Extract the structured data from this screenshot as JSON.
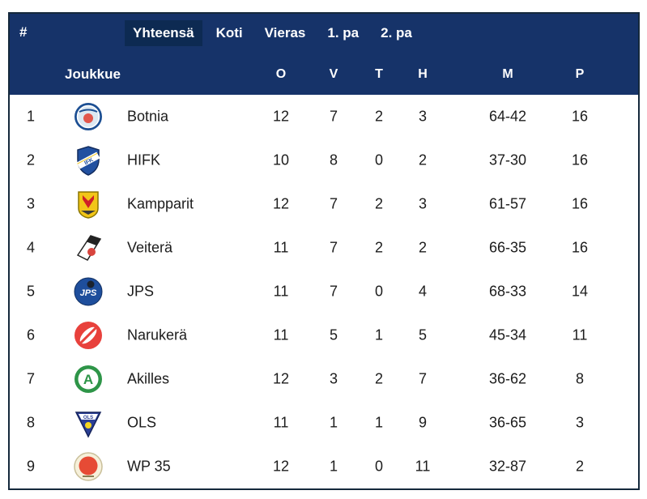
{
  "table": {
    "rank_header": "#",
    "tabs": [
      {
        "label": "Yhteensä",
        "active": true
      },
      {
        "label": "Koti",
        "active": false
      },
      {
        "label": "Vieras",
        "active": false
      },
      {
        "label": "1. pa",
        "active": false
      },
      {
        "label": "2. pa",
        "active": false
      }
    ],
    "columns": {
      "team": "Joukkue",
      "o": "O",
      "v": "V",
      "t": "T",
      "h": "H",
      "m": "M",
      "p": "P"
    },
    "rows": [
      {
        "rank": "1",
        "team": "Botnia",
        "logo": "botnia",
        "o": "12",
        "v": "7",
        "t": "2",
        "h": "3",
        "m": "64-42",
        "p": "16"
      },
      {
        "rank": "2",
        "team": "HIFK",
        "logo": "hifk",
        "o": "10",
        "v": "8",
        "t": "0",
        "h": "2",
        "m": "37-30",
        "p": "16"
      },
      {
        "rank": "3",
        "team": "Kampparit",
        "logo": "kampparit",
        "o": "12",
        "v": "7",
        "t": "2",
        "h": "3",
        "m": "61-57",
        "p": "16"
      },
      {
        "rank": "4",
        "team": "Veiterä",
        "logo": "veitera",
        "o": "11",
        "v": "7",
        "t": "2",
        "h": "2",
        "m": "66-35",
        "p": "16"
      },
      {
        "rank": "5",
        "team": "JPS",
        "logo": "jps",
        "o": "11",
        "v": "7",
        "t": "0",
        "h": "4",
        "m": "68-33",
        "p": "14"
      },
      {
        "rank": "6",
        "team": "Narukerä",
        "logo": "narukera",
        "o": "11",
        "v": "5",
        "t": "1",
        "h": "5",
        "m": "45-34",
        "p": "11"
      },
      {
        "rank": "7",
        "team": "Akilles",
        "logo": "akilles",
        "o": "12",
        "v": "3",
        "t": "2",
        "h": "7",
        "m": "36-62",
        "p": "8"
      },
      {
        "rank": "8",
        "team": "OLS",
        "logo": "ols",
        "o": "11",
        "v": "1",
        "t": "1",
        "h": "9",
        "m": "36-65",
        "p": "3"
      },
      {
        "rank": "9",
        "team": "WP 35",
        "logo": "wp35",
        "o": "12",
        "v": "1",
        "t": "0",
        "h": "11",
        "m": "32-87",
        "p": "2"
      }
    ]
  },
  "colors": {
    "header_bg": "#163369",
    "active_tab_bg": "#0d2a52",
    "border": "#15293c",
    "body_text": "#1c1c1c"
  }
}
